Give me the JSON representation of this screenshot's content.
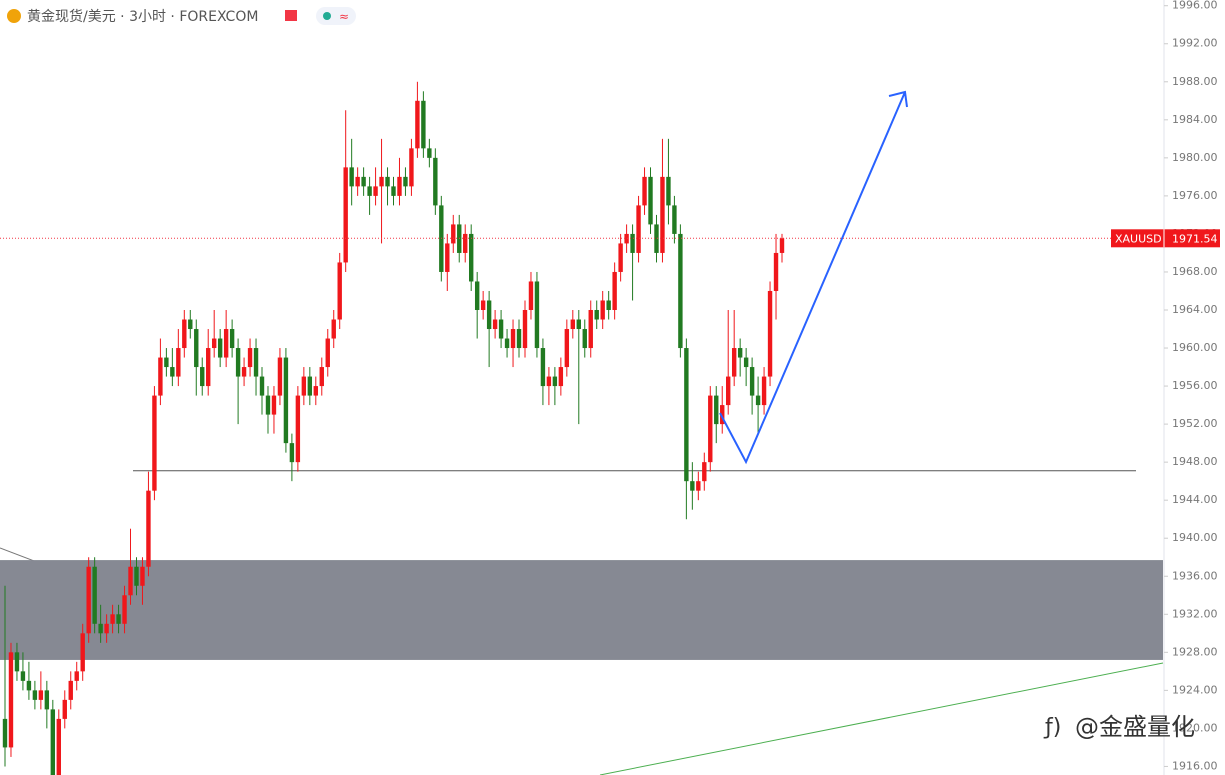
{
  "chart_data": {
    "type": "candlestick",
    "title": "黄金现货/美元 · 3小时 · FOREXCOM",
    "watermark": "@金盛量化",
    "up_color": "#f0171b",
    "down_color": "#217a21",
    "ylim": [
      1915.1,
      1996.6
    ],
    "yticks": [
      {
        "value": 1916,
        "label": "1916.00"
      },
      {
        "value": 1920,
        "label": "1920.00"
      },
      {
        "value": 1924,
        "label": "1924.00"
      },
      {
        "value": 1928,
        "label": "1928.00"
      },
      {
        "value": 1932,
        "label": "1932.00"
      },
      {
        "value": 1936,
        "label": "1936.00"
      },
      {
        "value": 1940,
        "label": "1940.00"
      },
      {
        "value": 1944,
        "label": "1944.00"
      },
      {
        "value": 1948,
        "label": "1948.00"
      },
      {
        "value": 1952,
        "label": "1952.00"
      },
      {
        "value": 1956,
        "label": "1956.00"
      },
      {
        "value": 1960,
        "label": "1960.00"
      },
      {
        "value": 1964,
        "label": "1964.00"
      },
      {
        "value": 1968,
        "label": "1968.00"
      },
      {
        "value": 1972,
        "label": "1972.00"
      },
      {
        "value": 1976,
        "label": "1976.00"
      },
      {
        "value": 1980,
        "label": "1980.00"
      },
      {
        "value": 1984,
        "label": "1984.00"
      },
      {
        "value": 1988,
        "label": "1988.00"
      },
      {
        "value": 1992,
        "label": "1992.00"
      },
      {
        "value": 1996,
        "label": "1996.00"
      }
    ],
    "last_price": {
      "symbol": "XAUUSD",
      "value": 1971.54
    },
    "support": 1947.1,
    "zone": [
      1927.2,
      1937.7
    ],
    "candles": [
      [
        1921,
        1935,
        1916,
        1918
      ],
      [
        1918,
        1929,
        1917,
        1928
      ],
      [
        1928,
        1929,
        1925,
        1926
      ],
      [
        1926,
        1928,
        1924,
        1925
      ],
      [
        1925,
        1927,
        1923,
        1924
      ],
      [
        1924,
        1925,
        1922,
        1923
      ],
      [
        1923,
        1926,
        1922,
        1924
      ],
      [
        1924,
        1925,
        1920,
        1922
      ],
      [
        1922,
        1923,
        1913,
        1914
      ],
      [
        1914,
        1922,
        1913,
        1921
      ],
      [
        1921,
        1924,
        1920,
        1923
      ],
      [
        1923,
        1926,
        1922,
        1925
      ],
      [
        1925,
        1927,
        1924,
        1926
      ],
      [
        1926,
        1931,
        1925,
        1930
      ],
      [
        1930,
        1938,
        1929,
        1937
      ],
      [
        1937,
        1938,
        1930,
        1931
      ],
      [
        1931,
        1933,
        1929,
        1930
      ],
      [
        1930,
        1932,
        1929,
        1931
      ],
      [
        1931,
        1933,
        1930,
        1932
      ],
      [
        1932,
        1933,
        1930,
        1931
      ],
      [
        1931,
        1935,
        1930,
        1934
      ],
      [
        1934,
        1941,
        1933,
        1937
      ],
      [
        1937,
        1938,
        1934,
        1935
      ],
      [
        1935,
        1938,
        1933,
        1937
      ],
      [
        1937,
        1947,
        1936,
        1945
      ],
      [
        1945,
        1956,
        1944,
        1955
      ],
      [
        1955,
        1961,
        1954,
        1959
      ],
      [
        1959,
        1960,
        1957,
        1958
      ],
      [
        1958,
        1960,
        1956,
        1957
      ],
      [
        1957,
        1962,
        1956,
        1960
      ],
      [
        1960,
        1964,
        1959,
        1963
      ],
      [
        1963,
        1964,
        1961,
        1962
      ],
      [
        1962,
        1963,
        1955,
        1958
      ],
      [
        1958,
        1959,
        1955,
        1956
      ],
      [
        1956,
        1962,
        1955,
        1960
      ],
      [
        1960,
        1964,
        1959,
        1961
      ],
      [
        1961,
        1962,
        1958,
        1959
      ],
      [
        1959,
        1964,
        1958,
        1962
      ],
      [
        1962,
        1963,
        1959,
        1960
      ],
      [
        1960,
        1961,
        1952,
        1957
      ],
      [
        1957,
        1959,
        1956,
        1958
      ],
      [
        1958,
        1961,
        1957,
        1960
      ],
      [
        1960,
        1961,
        1955,
        1957
      ],
      [
        1957,
        1958,
        1953,
        1955
      ],
      [
        1955,
        1956,
        1951,
        1953
      ],
      [
        1953,
        1956,
        1951,
        1955
      ],
      [
        1955,
        1960,
        1954,
        1959
      ],
      [
        1959,
        1960,
        1949,
        1950
      ],
      [
        1950,
        1951,
        1946,
        1948
      ],
      [
        1948,
        1956,
        1947,
        1955
      ],
      [
        1955,
        1958,
        1954,
        1957
      ],
      [
        1957,
        1958,
        1954,
        1955
      ],
      [
        1955,
        1957,
        1954,
        1956
      ],
      [
        1956,
        1959,
        1955,
        1958
      ],
      [
        1958,
        1962,
        1957,
        1961
      ],
      [
        1961,
        1964,
        1960,
        1963
      ],
      [
        1963,
        1970,
        1962,
        1969
      ],
      [
        1969,
        1985,
        1968,
        1979
      ],
      [
        1979,
        1982,
        1975,
        1977
      ],
      [
        1977,
        1979,
        1976,
        1978
      ],
      [
        1978,
        1979,
        1976,
        1977
      ],
      [
        1977,
        1978,
        1974,
        1976
      ],
      [
        1976,
        1979,
        1975,
        1977
      ],
      [
        1977,
        1982,
        1971,
        1978
      ],
      [
        1978,
        1979,
        1975,
        1977
      ],
      [
        1977,
        1978,
        1975,
        1976
      ],
      [
        1976,
        1980,
        1975,
        1978
      ],
      [
        1978,
        1979,
        1976,
        1977
      ],
      [
        1977,
        1982,
        1976,
        1981
      ],
      [
        1981,
        1988,
        1980,
        1986
      ],
      [
        1986,
        1987,
        1980,
        1981
      ],
      [
        1981,
        1982,
        1979,
        1980
      ],
      [
        1980,
        1981,
        1974,
        1975
      ],
      [
        1975,
        1976,
        1967,
        1968
      ],
      [
        1968,
        1972,
        1966,
        1971
      ],
      [
        1971,
        1974,
        1970,
        1973
      ],
      [
        1973,
        1974,
        1969,
        1970
      ],
      [
        1970,
        1973,
        1969,
        1972
      ],
      [
        1972,
        1973,
        1966,
        1967
      ],
      [
        1967,
        1968,
        1961,
        1964
      ],
      [
        1964,
        1966,
        1963,
        1965
      ],
      [
        1965,
        1966,
        1958,
        1962
      ],
      [
        1962,
        1964,
        1961,
        1963
      ],
      [
        1963,
        1964,
        1960,
        1961
      ],
      [
        1961,
        1962,
        1959,
        1960
      ],
      [
        1960,
        1963,
        1958,
        1962
      ],
      [
        1962,
        1963,
        1959,
        1960
      ],
      [
        1960,
        1965,
        1959,
        1964
      ],
      [
        1964,
        1968,
        1963,
        1967
      ],
      [
        1967,
        1968,
        1959,
        1960
      ],
      [
        1960,
        1961,
        1954,
        1956
      ],
      [
        1956,
        1958,
        1954,
        1957
      ],
      [
        1957,
        1958,
        1954,
        1956
      ],
      [
        1956,
        1959,
        1955,
        1958
      ],
      [
        1958,
        1963,
        1957,
        1962
      ],
      [
        1962,
        1964,
        1961,
        1963
      ],
      [
        1963,
        1964,
        1952,
        1962
      ],
      [
        1962,
        1963,
        1959,
        1960
      ],
      [
        1960,
        1965,
        1959,
        1964
      ],
      [
        1964,
        1965,
        1962,
        1963
      ],
      [
        1963,
        1966,
        1962,
        1965
      ],
      [
        1965,
        1966,
        1963,
        1964
      ],
      [
        1964,
        1969,
        1963,
        1968
      ],
      [
        1968,
        1972,
        1967,
        1971
      ],
      [
        1971,
        1973,
        1970,
        1972
      ],
      [
        1972,
        1973,
        1965,
        1970
      ],
      [
        1970,
        1976,
        1969,
        1975
      ],
      [
        1975,
        1979,
        1974,
        1978
      ],
      [
        1978,
        1979,
        1972,
        1973
      ],
      [
        1973,
        1974,
        1969,
        1970
      ],
      [
        1970,
        1982,
        1969,
        1978
      ],
      [
        1978,
        1982,
        1973,
        1975
      ],
      [
        1975,
        1976,
        1971,
        1972
      ],
      [
        1972,
        1973,
        1959,
        1960
      ],
      [
        1960,
        1961,
        1942,
        1946
      ],
      [
        1946,
        1948,
        1943,
        1945
      ],
      [
        1945,
        1947,
        1944,
        1946
      ],
      [
        1946,
        1949,
        1945,
        1948
      ],
      [
        1948,
        1956,
        1947,
        1955
      ],
      [
        1955,
        1956,
        1950,
        1952
      ],
      [
        1952,
        1956,
        1951,
        1954
      ],
      [
        1954,
        1964,
        1953,
        1957
      ],
      [
        1957,
        1964,
        1956,
        1960
      ],
      [
        1960,
        1961,
        1957,
        1959
      ],
      [
        1959,
        1960,
        1956,
        1958
      ],
      [
        1958,
        1959,
        1953,
        1955
      ],
      [
        1955,
        1957,
        1951,
        1954
      ],
      [
        1954,
        1958,
        1953,
        1957
      ],
      [
        1957,
        1967,
        1956,
        1966
      ],
      [
        1966,
        1972,
        1963,
        1970
      ],
      [
        1970,
        1972,
        1969,
        1971.54
      ]
    ]
  }
}
